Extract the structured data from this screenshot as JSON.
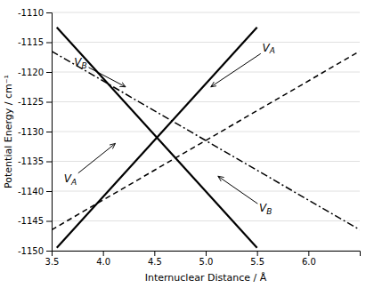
{
  "chart_data": {
    "type": "line",
    "xlabel": "Internuclear Distance / Å",
    "ylabel": "Potential Energy / cm⁻¹",
    "xlim": [
      3.5,
      6.5
    ],
    "ylim": [
      -1150,
      -1110
    ],
    "xticks": [
      3.5,
      {
        "value": 4.0,
        "label": "4.0"
      },
      4.5,
      {
        "value": 5.0,
        "label": "5.0"
      },
      5.5,
      {
        "value": 6.0,
        "label": "6.0"
      }
    ],
    "yticks": [
      -1150,
      -1145,
      -1140,
      -1135,
      -1130,
      -1125,
      -1120,
      -1115,
      -1110
    ],
    "grid": "y",
    "series": [
      {
        "x": [
          3.55,
          5.5
        ],
        "values": [
          -1112.5,
          -1149.5
        ],
        "color": "black",
        "line_style": "solid"
      },
      {
        "x": [
          3.55,
          5.5
        ],
        "values": [
          -1149.5,
          -1112.5
        ],
        "color": "black",
        "line_style": "solid"
      },
      {
        "x": [
          3.5,
          6.5
        ],
        "values": [
          -1116.5,
          -1146.5
        ],
        "color": "black",
        "line_style": "dashdot"
      },
      {
        "x": [
          3.5,
          6.5
        ],
        "values": [
          -1146.5,
          -1116.5
        ],
        "color": "black",
        "line_style": "dashed"
      }
    ],
    "annotations": [
      {
        "text": "VA",
        "xy": [
          5.05,
          -1122.5
        ],
        "xytext": [
          5.55,
          -1116.5
        ]
      },
      {
        "text": "VB",
        "xy": [
          4.22,
          -1122.5
        ],
        "xytext": [
          3.72,
          -1119.0
        ]
      },
      {
        "text": "VA",
        "xy": [
          4.12,
          -1132.0
        ],
        "xytext": [
          3.62,
          -1138.5
        ]
      },
      {
        "text": "VB",
        "xy": [
          5.12,
          -1137.5
        ],
        "xytext": [
          5.52,
          -1143.5
        ]
      }
    ]
  }
}
